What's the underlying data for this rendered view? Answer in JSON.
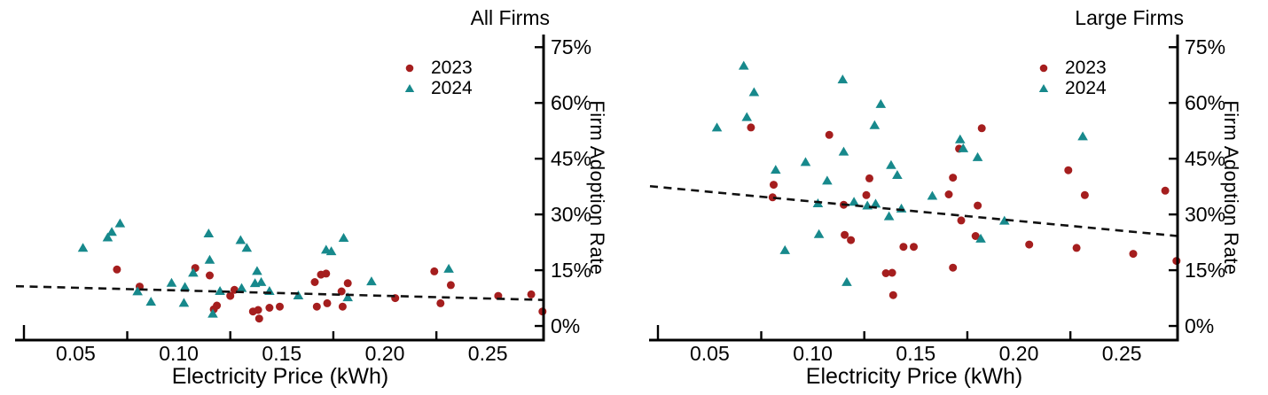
{
  "figure": {
    "background": "#ffffff",
    "axis_color": "#000000",
    "trend_color": "#111111"
  },
  "chart_data": [
    {
      "type": "scatter",
      "title": "All Firms",
      "xlabel": "Electricity Price (kWh)",
      "ylabel": "Firm Adoption Rate",
      "xlim": [
        0.021,
        0.277
      ],
      "ylim": [
        -3.8,
        78.4
      ],
      "grid": false,
      "legend_position": "top-right-inside",
      "x_ticks": [
        {
          "v": 0.05,
          "label": "0.05"
        },
        {
          "v": 0.1,
          "label": "0.10"
        },
        {
          "v": 0.15,
          "label": "0.15"
        },
        {
          "v": 0.2,
          "label": "0.20"
        },
        {
          "v": 0.25,
          "label": "0.25"
        }
      ],
      "x_minor_ticks": [
        0.075,
        0.125,
        0.175,
        0.225
      ],
      "y_ticks": [
        {
          "v": 0,
          "label": "0%"
        },
        {
          "v": 15,
          "label": "15%"
        },
        {
          "v": 30,
          "label": "30%"
        },
        {
          "v": 45,
          "label": "45%"
        },
        {
          "v": 60,
          "label": "60%"
        },
        {
          "v": 75,
          "label": "75%"
        }
      ],
      "legend": [
        {
          "label": "2023",
          "marker": "circle",
          "color": "#A51E1E"
        },
        {
          "label": "2024",
          "marker": "triangle",
          "color": "#17898C"
        }
      ],
      "trend": {
        "x1": 0.021,
        "p1": 10.7,
        "x2": 0.277,
        "p2": 7.0,
        "style": "dashed"
      },
      "series": [
        {
          "name": "2023",
          "marker": "circle",
          "color": "#A51E1E",
          "points": [
            [
              0.07,
              15.2
            ],
            [
              0.081,
              10.6
            ],
            [
              0.108,
              15.6
            ],
            [
              0.115,
              13.6
            ],
            [
              0.117,
              4.5
            ],
            [
              0.1185,
              5.5
            ],
            [
              0.125,
              8.1
            ],
            [
              0.127,
              9.7
            ],
            [
              0.136,
              3.9
            ],
            [
              0.1385,
              4.3
            ],
            [
              0.139,
              2.0
            ],
            [
              0.144,
              4.9
            ],
            [
              0.149,
              5.2
            ],
            [
              0.166,
              11.8
            ],
            [
              0.167,
              5.2
            ],
            [
              0.169,
              13.8
            ],
            [
              0.1715,
              14.1
            ],
            [
              0.172,
              6.1
            ],
            [
              0.179,
              9.3
            ],
            [
              0.1795,
              5.2
            ],
            [
              0.182,
              11.5
            ],
            [
              0.205,
              7.5
            ],
            [
              0.224,
              14.7
            ],
            [
              0.227,
              6.1
            ],
            [
              0.232,
              11.0
            ],
            [
              0.255,
              8.1
            ],
            [
              0.271,
              8.5
            ],
            [
              0.2765,
              3.9
            ]
          ]
        },
        {
          "name": "2024",
          "marker": "triangle",
          "color": "#17898C",
          "points": [
            [
              0.0535,
              21.0
            ],
            [
              0.0655,
              23.8
            ],
            [
              0.0675,
              25.3
            ],
            [
              0.0715,
              27.6
            ],
            [
              0.08,
              9.3
            ],
            [
              0.0865,
              6.5
            ],
            [
              0.0965,
              11.6
            ],
            [
              0.1025,
              6.2
            ],
            [
              0.103,
              10.5
            ],
            [
              0.107,
              14.3
            ],
            [
              0.1145,
              24.9
            ],
            [
              0.115,
              17.8
            ],
            [
              0.1165,
              3.3
            ],
            [
              0.12,
              9.4
            ],
            [
              0.13,
              23.1
            ],
            [
              0.1305,
              10.2
            ],
            [
              0.133,
              21.0
            ],
            [
              0.137,
              11.5
            ],
            [
              0.138,
              14.8
            ],
            [
              0.14,
              11.8
            ],
            [
              0.144,
              9.4
            ],
            [
              0.158,
              8.2
            ],
            [
              0.1715,
              20.5
            ],
            [
              0.174,
              20.1
            ],
            [
              0.18,
              23.7
            ],
            [
              0.182,
              7.7
            ],
            [
              0.1935,
              12.0
            ],
            [
              0.231,
              15.4
            ]
          ]
        }
      ]
    },
    {
      "type": "scatter",
      "title": "Large Firms",
      "xlabel": "Electricity Price (kWh)",
      "ylabel": "Firm Adoption Rate",
      "xlim": [
        0.021,
        0.277
      ],
      "ylim": [
        -3.8,
        78.4
      ],
      "grid": false,
      "legend_position": "top-right-inside",
      "x_ticks": [
        {
          "v": 0.05,
          "label": "0.05"
        },
        {
          "v": 0.1,
          "label": "0.10"
        },
        {
          "v": 0.15,
          "label": "0.15"
        },
        {
          "v": 0.2,
          "label": "0.20"
        },
        {
          "v": 0.25,
          "label": "0.25"
        }
      ],
      "x_minor_ticks": [
        0.075,
        0.125,
        0.175,
        0.225
      ],
      "y_ticks": [
        {
          "v": 0,
          "label": "0%"
        },
        {
          "v": 15,
          "label": "15%"
        },
        {
          "v": 30,
          "label": "30%"
        },
        {
          "v": 45,
          "label": "45%"
        },
        {
          "v": 60,
          "label": "60%"
        },
        {
          "v": 75,
          "label": "75%"
        }
      ],
      "legend": [
        {
          "label": "2023",
          "marker": "circle",
          "color": "#A51E1E"
        },
        {
          "label": "2024",
          "marker": "triangle",
          "color": "#17898C"
        }
      ],
      "trend": {
        "x1": 0.021,
        "p1": 37.6,
        "x2": 0.277,
        "p2": 24.2,
        "style": "dashed"
      },
      "series": [
        {
          "name": "2023",
          "marker": "circle",
          "color": "#A51E1E",
          "points": [
            [
              0.07,
              53.4
            ],
            [
              0.0805,
              34.6
            ],
            [
              0.081,
              38.0
            ],
            [
              0.108,
              51.4
            ],
            [
              0.115,
              32.6
            ],
            [
              0.1155,
              24.5
            ],
            [
              0.1185,
              23.1
            ],
            [
              0.126,
              35.2
            ],
            [
              0.1275,
              39.7
            ],
            [
              0.1355,
              14.2
            ],
            [
              0.1385,
              14.3
            ],
            [
              0.139,
              8.3
            ],
            [
              0.144,
              21.3
            ],
            [
              0.149,
              21.3
            ],
            [
              0.166,
              35.4
            ],
            [
              0.168,
              39.9
            ],
            [
              0.168,
              15.7
            ],
            [
              0.171,
              47.7
            ],
            [
              0.172,
              28.4
            ],
            [
              0.179,
              24.2
            ],
            [
              0.18,
              32.4
            ],
            [
              0.182,
              53.2
            ],
            [
              0.205,
              21.9
            ],
            [
              0.224,
              41.9
            ],
            [
              0.228,
              21.0
            ],
            [
              0.232,
              35.2
            ],
            [
              0.2555,
              19.4
            ],
            [
              0.271,
              36.4
            ],
            [
              0.2765,
              17.5
            ]
          ]
        },
        {
          "name": "2024",
          "marker": "triangle",
          "color": "#17898C",
          "points": [
            [
              0.0535,
              53.4
            ],
            [
              0.0665,
              70.0
            ],
            [
              0.068,
              56.2
            ],
            [
              0.0715,
              62.9
            ],
            [
              0.082,
              42.0
            ],
            [
              0.0865,
              20.4
            ],
            [
              0.0965,
              44.1
            ],
            [
              0.1025,
              33.0
            ],
            [
              0.103,
              24.7
            ],
            [
              0.107,
              39.1
            ],
            [
              0.1145,
              66.3
            ],
            [
              0.115,
              46.9
            ],
            [
              0.1165,
              11.8
            ],
            [
              0.12,
              33.4
            ],
            [
              0.1265,
              32.4
            ],
            [
              0.13,
              54.0
            ],
            [
              0.1305,
              32.9
            ],
            [
              0.133,
              59.7
            ],
            [
              0.137,
              29.5
            ],
            [
              0.138,
              43.3
            ],
            [
              0.141,
              40.6
            ],
            [
              0.143,
              31.6
            ],
            [
              0.158,
              35.0
            ],
            [
              0.1715,
              50.2
            ],
            [
              0.173,
              47.8
            ],
            [
              0.18,
              45.4
            ],
            [
              0.1815,
              23.5
            ],
            [
              0.193,
              28.3
            ],
            [
              0.231,
              51.0
            ]
          ]
        }
      ]
    }
  ]
}
